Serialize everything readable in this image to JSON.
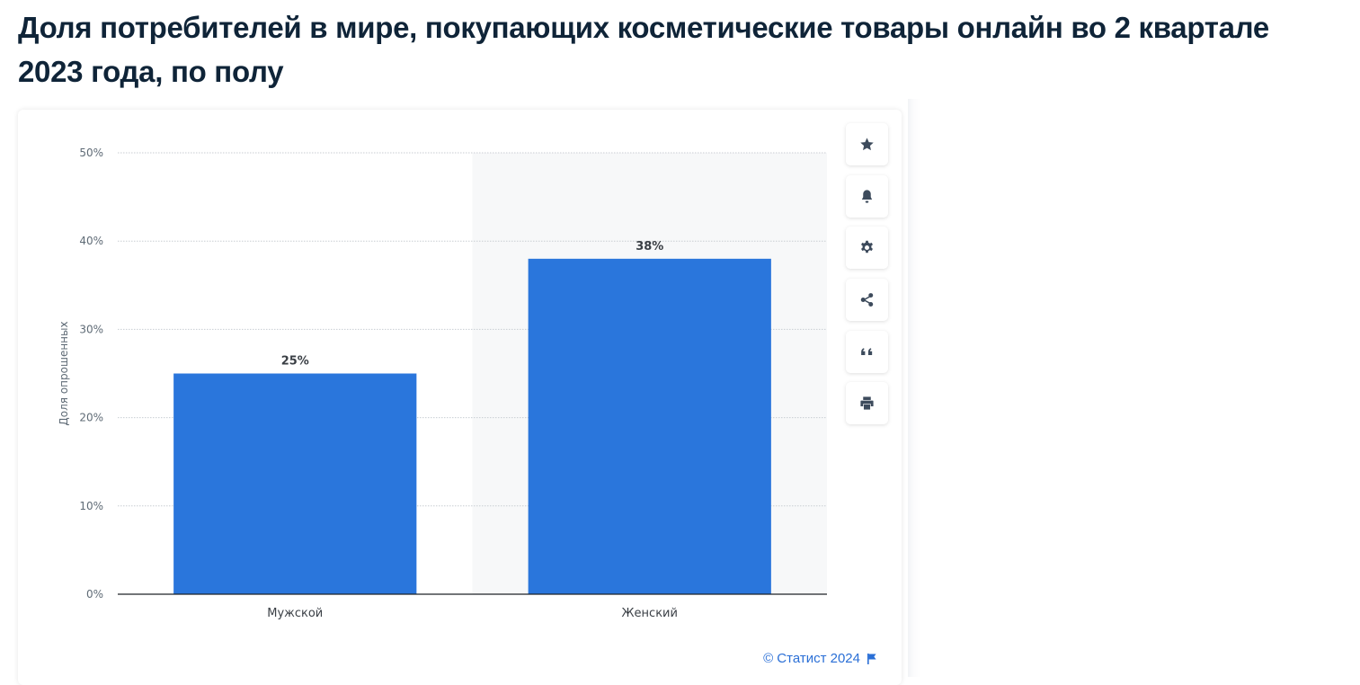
{
  "page": {
    "title": "Доля потребителей в мире, покупающих косметические товары онлайн во 2 квартале 2023 года, по полу"
  },
  "toolbar": [
    {
      "icon": "star-icon",
      "name": "favorite-button"
    },
    {
      "icon": "bell-icon",
      "name": "notification-button"
    },
    {
      "icon": "gear-icon",
      "name": "settings-button"
    },
    {
      "icon": "share-icon",
      "name": "share-button"
    },
    {
      "icon": "quote-icon",
      "name": "cite-button"
    },
    {
      "icon": "print-icon",
      "name": "print-button"
    }
  ],
  "copyright": "© Статист 2024",
  "colors": {
    "bar": "#2a76dc",
    "title": "#0f2438",
    "link": "#2a6fd6"
  },
  "chart_data": {
    "type": "bar",
    "categories": [
      "Мужской",
      "Женский"
    ],
    "values": [
      25,
      38
    ],
    "value_labels": [
      "25%",
      "38%"
    ],
    "title": "",
    "xlabel": "",
    "ylabel": "Доля опрошенных",
    "ylim": [
      0,
      50
    ],
    "yticks": [
      0,
      10,
      20,
      30,
      40,
      50
    ],
    "ytick_labels": [
      "0%",
      "10%",
      "20%",
      "30%",
      "40%",
      "50%"
    ],
    "grid": true,
    "legend": "none",
    "highlighted_category": "Женский"
  }
}
